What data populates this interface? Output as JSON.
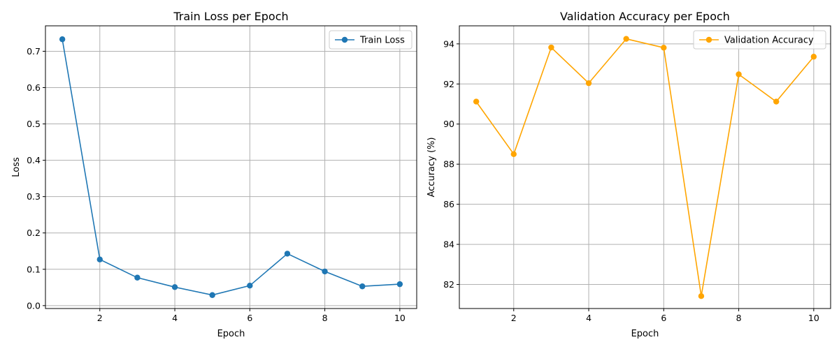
{
  "chart_data": [
    {
      "type": "line",
      "title": "Train Loss per Epoch",
      "xlabel": "Epoch",
      "ylabel": "Loss",
      "xlim": [
        0.55,
        10.45
      ],
      "ylim": [
        -0.008,
        0.77
      ],
      "xticks": [
        2,
        4,
        6,
        8,
        10
      ],
      "yticks": [
        0.0,
        0.1,
        0.2,
        0.3,
        0.4,
        0.5,
        0.6,
        0.7
      ],
      "ytick_labels": [
        "0.0",
        "0.1",
        "0.2",
        "0.3",
        "0.4",
        "0.5",
        "0.6",
        "0.7"
      ],
      "grid": true,
      "legend_position": "top-right",
      "series": [
        {
          "name": "Train Loss",
          "color": "#1f77b4",
          "marker": "circle",
          "x": [
            1,
            2,
            3,
            4,
            5,
            6,
            7,
            8,
            9,
            10
          ],
          "y": [
            0.733,
            0.127,
            0.077,
            0.051,
            0.029,
            0.055,
            0.143,
            0.094,
            0.053,
            0.059
          ]
        }
      ]
    },
    {
      "type": "line",
      "title": "Validation Accuracy per Epoch",
      "xlabel": "Epoch",
      "ylabel": "Accuracy (%)",
      "xlim": [
        0.55,
        10.45
      ],
      "ylim": [
        80.8,
        94.9
      ],
      "xticks": [
        2,
        4,
        6,
        8,
        10
      ],
      "yticks": [
        82,
        84,
        86,
        88,
        90,
        92,
        94
      ],
      "ytick_labels": [
        "82",
        "84",
        "86",
        "88",
        "90",
        "92",
        "94"
      ],
      "grid": true,
      "legend_position": "top-right",
      "series": [
        {
          "name": "Validation Accuracy",
          "color": "#ffa500",
          "marker": "circle",
          "x": [
            1,
            2,
            3,
            4,
            5,
            6,
            7,
            8,
            9,
            10
          ],
          "y": [
            91.12,
            88.5,
            93.82,
            92.04,
            94.25,
            93.81,
            81.42,
            92.48,
            91.12,
            93.36
          ]
        }
      ]
    }
  ]
}
